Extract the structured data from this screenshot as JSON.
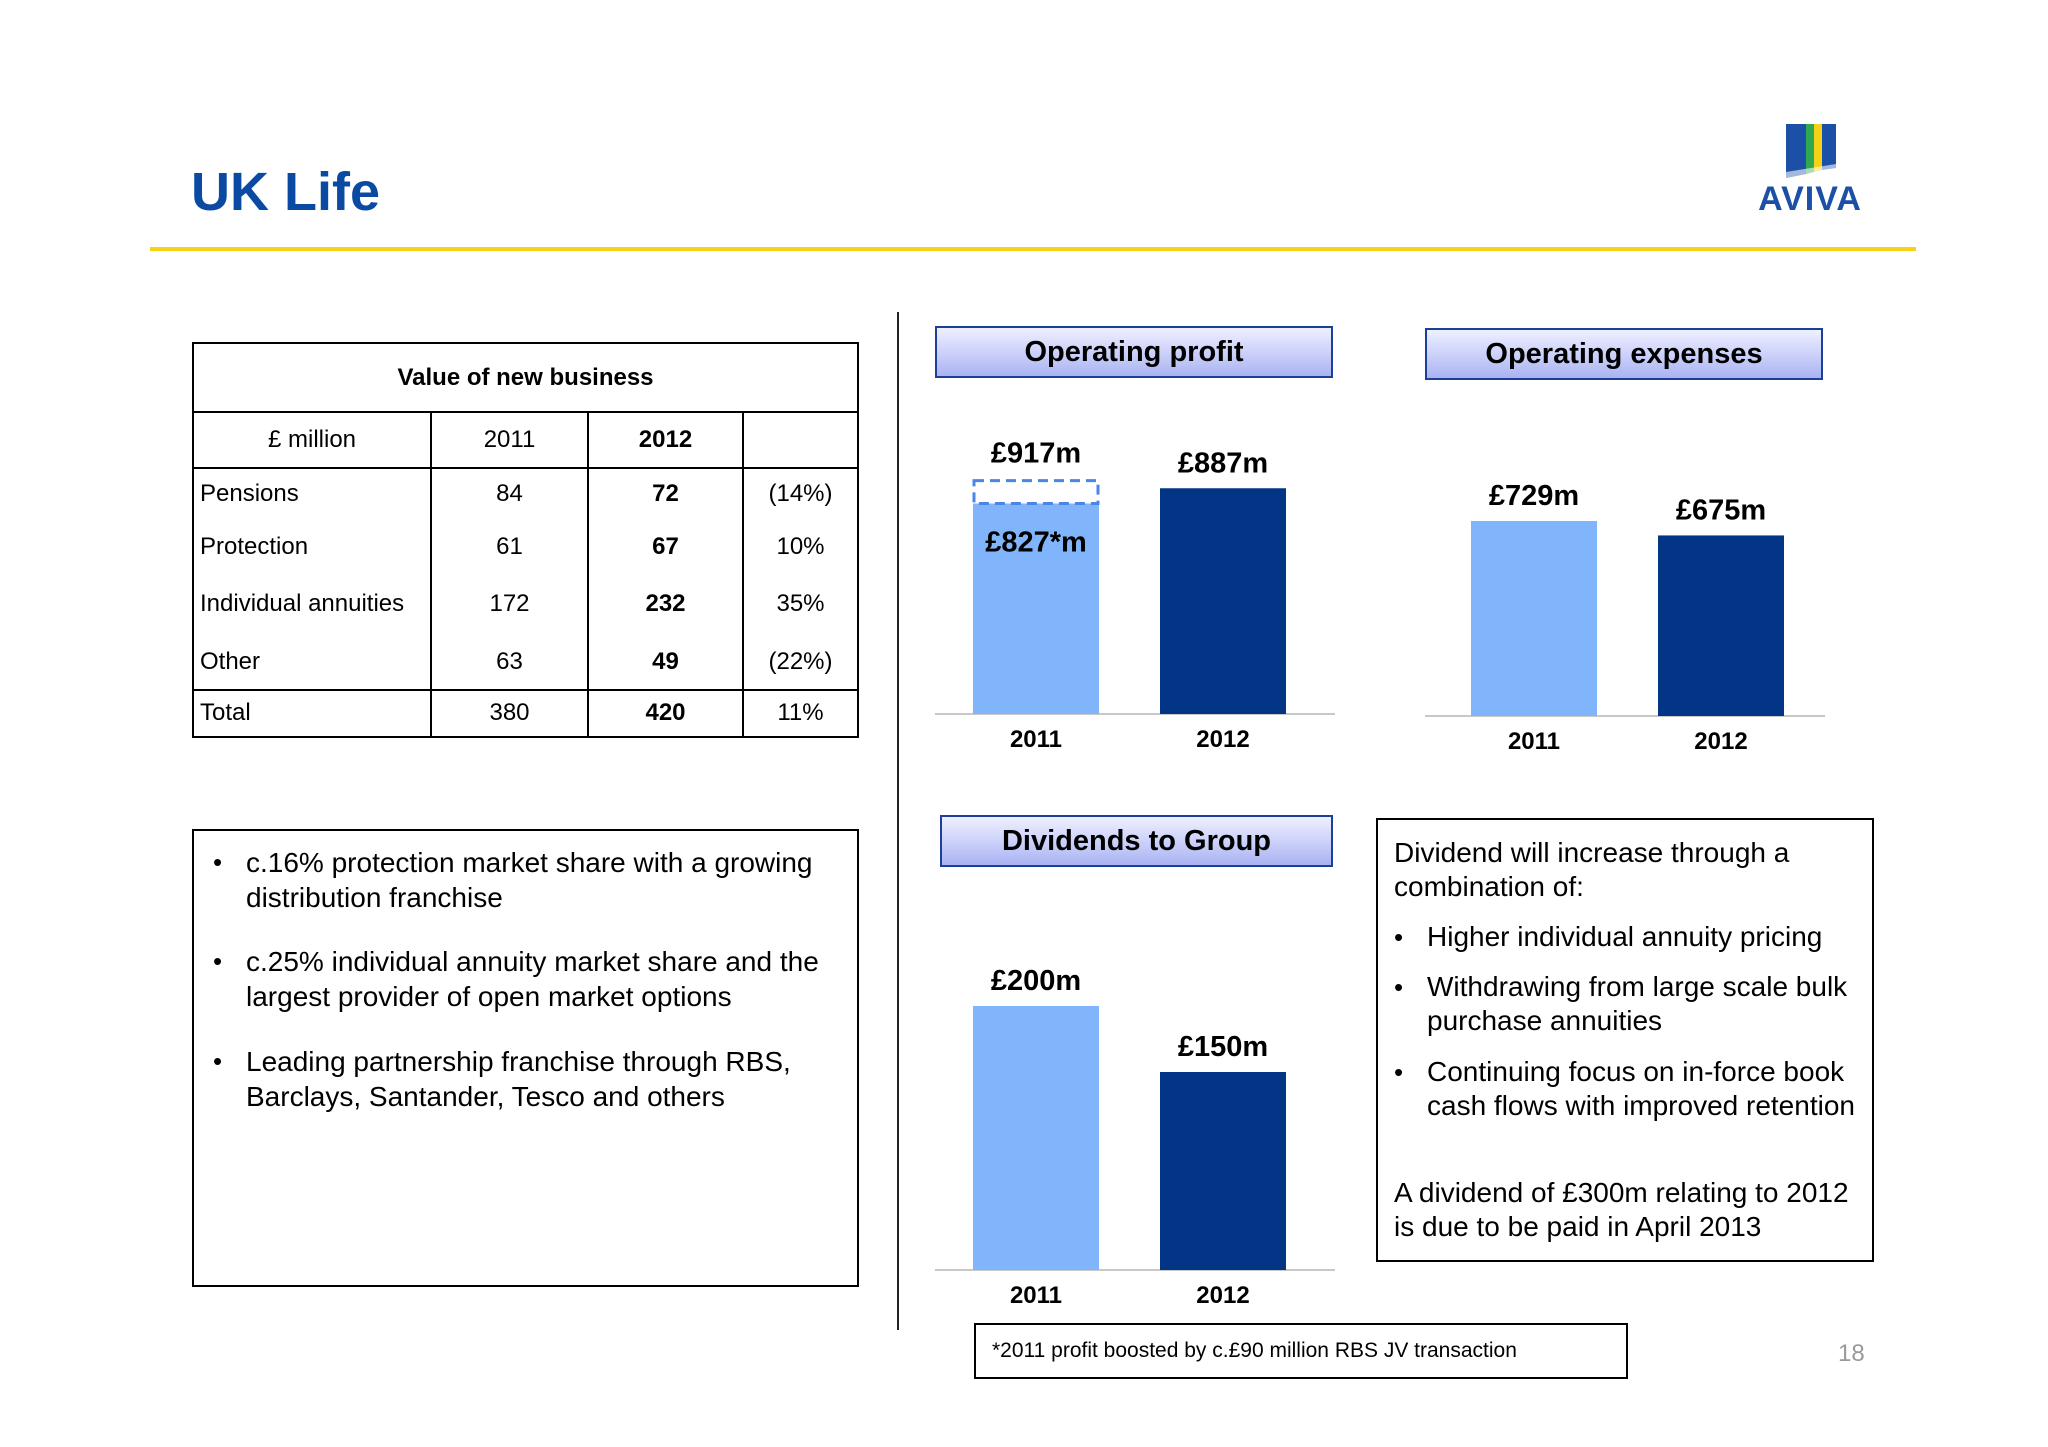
{
  "header": {
    "title": "UK Life",
    "logo_text": "AVIVA"
  },
  "colors": {
    "title_blue": "#0b4aa2",
    "rule_yellow": "#f5d118",
    "bar_light": "#80b4fb",
    "bar_dark": "#023585",
    "dashed_outline": "#4a86e8",
    "header_border": "#1c3f9a"
  },
  "vnb_table": {
    "title": "Value of new business",
    "columns": [
      "£ million",
      "2011",
      "2012",
      ""
    ],
    "rows": [
      {
        "label": "Pensions",
        "y2011": "84",
        "y2012": "72",
        "change": "(14%)"
      },
      {
        "label": "Protection",
        "y2011": "61",
        "y2012": "67",
        "change": "10%"
      },
      {
        "label": "Individual annuities",
        "y2011": "172",
        "y2012": "232",
        "change": "35%"
      },
      {
        "label": "Other",
        "y2011": "63",
        "y2012": "49",
        "change": "(22%)"
      }
    ],
    "total": {
      "label": "Total",
      "y2011": "380",
      "y2012": "420",
      "change": "11%"
    }
  },
  "highlights": [
    "c.16% protection market share with a growing distribution franchise",
    "c.25% individual annuity market share and the largest provider of open market options",
    "Leading partnership franchise through RBS, Barclays, Santander, Tesco and others"
  ],
  "dividend_box": {
    "intro": "Dividend will increase through a combination of:",
    "bullets": [
      "Higher individual annuity pricing",
      "Withdrawing from large scale bulk purchase annuities",
      "Continuing focus on in-force book cash flows with improved retention"
    ],
    "closing": "A dividend of £300m relating to 2012 is due to be paid in April 2013"
  },
  "footnote": "*2011 profit boosted by c.£90 million RBS JV transaction",
  "page_number": "18",
  "chart_data": [
    {
      "type": "bar",
      "title": "Operating profit",
      "categories": [
        "2011",
        "2012"
      ],
      "values": [
        917,
        887
      ],
      "data_labels": [
        "£917m",
        "£887m"
      ],
      "annotation": {
        "category": "2011",
        "value": 827,
        "label": "£827*m",
        "note": "dashed segment shows 827 to 917"
      },
      "unit": "£m"
    },
    {
      "type": "bar",
      "title": "Operating expenses",
      "categories": [
        "2011",
        "2012"
      ],
      "values": [
        729,
        675
      ],
      "data_labels": [
        "£729m",
        "£675m"
      ],
      "unit": "£m"
    },
    {
      "type": "bar",
      "title": "Dividends to Group",
      "categories": [
        "2011",
        "2012"
      ],
      "values": [
        200,
        150
      ],
      "data_labels": [
        "£200m",
        "£150m"
      ],
      "unit": "£m"
    }
  ]
}
